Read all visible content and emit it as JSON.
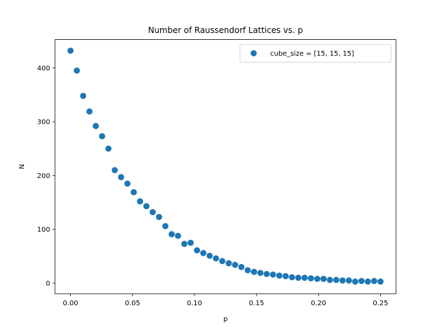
{
  "chart_data": {
    "type": "scatter",
    "title": "Number of Raussendorf Lattices vs. p",
    "xlabel": "p",
    "ylabel": "N",
    "xlim": [
      -0.0125,
      0.2625
    ],
    "ylim": [
      -19.6,
      452.6
    ],
    "xticks": [
      0.0,
      0.05,
      0.1,
      0.15,
      0.2,
      0.25
    ],
    "xtick_labels": [
      "0.00",
      "0.05",
      "0.10",
      "0.15",
      "0.20",
      "0.25"
    ],
    "yticks": [
      0,
      100,
      200,
      300,
      400
    ],
    "ytick_labels": [
      "0",
      "100",
      "200",
      "300",
      "400"
    ],
    "grid": false,
    "legend_position": "top-right",
    "series": [
      {
        "name": "cube_size = [15, 15, 15]",
        "color": "#1f77b4",
        "x": [
          0.0,
          0.0051,
          0.0102,
          0.0153,
          0.0204,
          0.0255,
          0.0306,
          0.0357,
          0.0408,
          0.0459,
          0.051,
          0.0561,
          0.0612,
          0.0663,
          0.0714,
          0.0765,
          0.0816,
          0.0867,
          0.0918,
          0.0969,
          0.102,
          0.1071,
          0.1122,
          0.1173,
          0.1224,
          0.1276,
          0.1327,
          0.1378,
          0.1429,
          0.148,
          0.1531,
          0.1582,
          0.1633,
          0.1684,
          0.1735,
          0.1786,
          0.1837,
          0.1888,
          0.1939,
          0.199,
          0.2041,
          0.2092,
          0.2143,
          0.2194,
          0.2245,
          0.2296,
          0.2347,
          0.2398,
          0.2449,
          0.25
        ],
        "y": [
          432,
          395,
          348,
          319,
          292,
          273,
          250,
          210,
          197,
          185,
          169,
          152,
          143,
          132,
          123,
          106,
          91,
          88,
          73,
          75,
          61,
          56,
          51,
          46,
          41,
          37,
          34,
          30,
          24,
          21,
          19,
          17,
          16,
          14,
          13,
          11,
          10,
          10,
          9,
          8,
          8,
          6,
          6,
          5,
          5,
          3,
          4,
          3,
          4,
          3
        ]
      }
    ]
  }
}
